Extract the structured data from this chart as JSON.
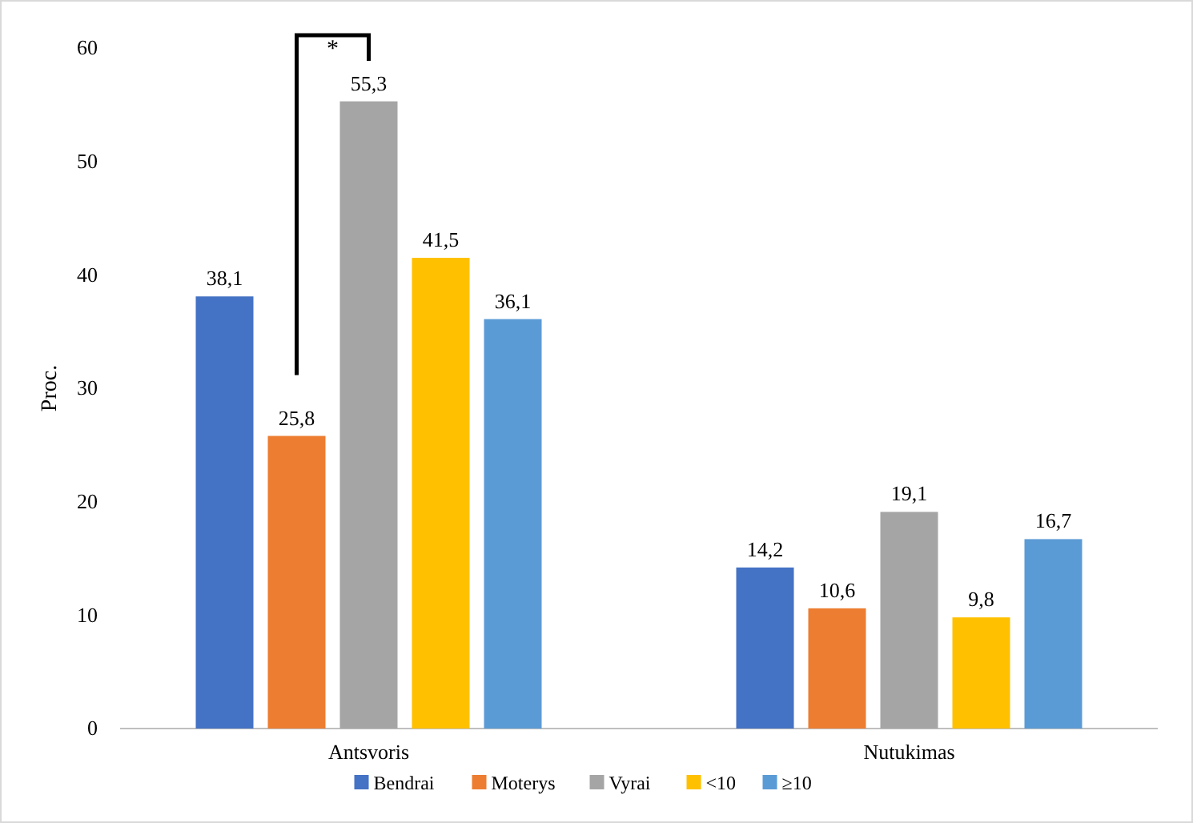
{
  "chart_data": {
    "type": "bar",
    "ylabel": "Proc.",
    "categories": [
      "Antsvoris",
      "Nutukimas"
    ],
    "series": [
      {
        "name": "Bendrai",
        "color": "#4472c4",
        "values": [
          38.1,
          14.2
        ],
        "value_labels": [
          "38,1",
          "14,2"
        ]
      },
      {
        "name": "Moterys",
        "color": "#ed7d31",
        "values": [
          25.8,
          10.6
        ],
        "value_labels": [
          "25,8",
          "10,6"
        ]
      },
      {
        "name": "Vyrai",
        "color": "#a5a5a5",
        "values": [
          55.3,
          19.1
        ],
        "value_labels": [
          "55,3",
          "19,1"
        ]
      },
      {
        "name": "<10",
        "color": "#ffc000",
        "values": [
          41.5,
          9.8
        ],
        "value_labels": [
          "41,5",
          "9,8"
        ]
      },
      {
        "name": "≥10",
        "color": "#5b9bd5",
        "values": [
          36.1,
          16.7
        ],
        "value_labels": [
          "36,1",
          "16,7"
        ]
      }
    ],
    "ylim": [
      0,
      60
    ],
    "yticks": [
      0,
      10,
      20,
      30,
      40,
      50,
      60
    ],
    "grid": false,
    "legend": "bottom",
    "annotations": [
      "*"
    ]
  }
}
